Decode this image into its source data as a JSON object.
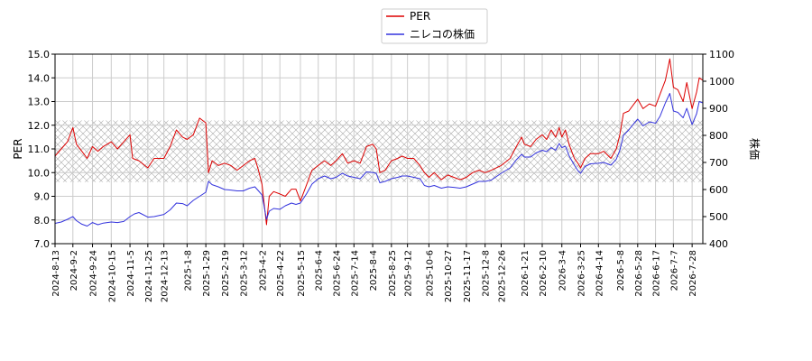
{
  "chart_data": {
    "type": "line",
    "title": "",
    "ylabel": "PER",
    "y2label": "株価",
    "xlabel": "",
    "grid": true,
    "legend_position": "top-center",
    "ylim": [
      7.0,
      15.0
    ],
    "y2lim": [
      400,
      1100
    ],
    "yticks": [
      "7.0",
      "8.0",
      "9.0",
      "10.0",
      "11.0",
      "12.0",
      "13.0",
      "14.0",
      "15.0"
    ],
    "y2ticks": [
      "400",
      "500",
      "600",
      "700",
      "800",
      "900",
      "1000",
      "1100"
    ],
    "x_range": [
      "2024-08-13",
      "2026-08-09"
    ],
    "xticks": [
      "2024-8-13",
      "2024-9-2",
      "2024-9-24",
      "2024-10-15",
      "2024-11-5",
      "2024-11-25",
      "2024-12-13",
      "2025-1-8",
      "2025-1-29",
      "2025-2-19",
      "2025-3-12",
      "2025-4-2",
      "2025-4-22",
      "2025-5-15",
      "2025-6-4",
      "2025-6-24",
      "2025-7-14",
      "2025-8-4",
      "2025-8-25",
      "2025-9-12",
      "2025-10-6",
      "2025-10-27",
      "2025-11-17",
      "2025-12-8",
      "2025-12-26",
      "2026-1-21",
      "2026-2-10",
      "2026-3-4",
      "2026-3-25",
      "2026-4-14",
      "2026-5-8",
      "2026-5-28",
      "2026-6-17",
      "2026-7-7",
      "2026-7-28"
    ],
    "band": {
      "from": 9.6,
      "to": 12.2,
      "color": "#aaaaaa"
    },
    "series": [
      {
        "name": "PER",
        "axis": "left",
        "color": "#dd0000",
        "points": [
          [
            "2024-08-13",
            10.7
          ],
          [
            "2024-08-20",
            11.0
          ],
          [
            "2024-08-27",
            11.3
          ],
          [
            "2024-09-02",
            11.9
          ],
          [
            "2024-09-06",
            11.2
          ],
          [
            "2024-09-12",
            10.9
          ],
          [
            "2024-09-18",
            10.6
          ],
          [
            "2024-09-24",
            11.1
          ],
          [
            "2024-09-30",
            10.9
          ],
          [
            "2024-10-06",
            11.1
          ],
          [
            "2024-10-15",
            11.3
          ],
          [
            "2024-10-22",
            11.0
          ],
          [
            "2024-10-29",
            11.3
          ],
          [
            "2024-11-05",
            11.6
          ],
          [
            "2024-11-08",
            10.6
          ],
          [
            "2024-11-15",
            10.5
          ],
          [
            "2024-11-25",
            10.2
          ],
          [
            "2024-12-02",
            10.6
          ],
          [
            "2024-12-13",
            10.6
          ],
          [
            "2024-12-20",
            11.1
          ],
          [
            "2024-12-27",
            11.8
          ],
          [
            "2025-01-03",
            11.5
          ],
          [
            "2025-01-08",
            11.4
          ],
          [
            "2025-01-15",
            11.6
          ],
          [
            "2025-01-22",
            12.3
          ],
          [
            "2025-01-29",
            12.1
          ],
          [
            "2025-02-01",
            10.0
          ],
          [
            "2025-02-05",
            10.5
          ],
          [
            "2025-02-12",
            10.3
          ],
          [
            "2025-02-19",
            10.4
          ],
          [
            "2025-02-26",
            10.3
          ],
          [
            "2025-03-05",
            10.1
          ],
          [
            "2025-03-12",
            10.3
          ],
          [
            "2025-03-19",
            10.5
          ],
          [
            "2025-03-25",
            10.6
          ],
          [
            "2025-03-29",
            10.1
          ],
          [
            "2025-04-02",
            9.5
          ],
          [
            "2025-04-07",
            7.8
          ],
          [
            "2025-04-10",
            9.0
          ],
          [
            "2025-04-15",
            9.2
          ],
          [
            "2025-04-22",
            9.1
          ],
          [
            "2025-04-28",
            9.0
          ],
          [
            "2025-05-05",
            9.3
          ],
          [
            "2025-05-10",
            9.3
          ],
          [
            "2025-05-15",
            8.8
          ],
          [
            "2025-05-22",
            9.5
          ],
          [
            "2025-05-28",
            10.1
          ],
          [
            "2025-06-04",
            10.3
          ],
          [
            "2025-06-11",
            10.5
          ],
          [
            "2025-06-18",
            10.3
          ],
          [
            "2025-06-24",
            10.5
          ],
          [
            "2025-07-01",
            10.8
          ],
          [
            "2025-07-07",
            10.4
          ],
          [
            "2025-07-14",
            10.5
          ],
          [
            "2025-07-21",
            10.4
          ],
          [
            "2025-07-28",
            11.1
          ],
          [
            "2025-08-04",
            11.2
          ],
          [
            "2025-08-08",
            11.0
          ],
          [
            "2025-08-12",
            10.0
          ],
          [
            "2025-08-18",
            10.1
          ],
          [
            "2025-08-25",
            10.5
          ],
          [
            "2025-09-01",
            10.6
          ],
          [
            "2025-09-06",
            10.7
          ],
          [
            "2025-09-12",
            10.6
          ],
          [
            "2025-09-19",
            10.6
          ],
          [
            "2025-09-26",
            10.3
          ],
          [
            "2025-10-01",
            10.0
          ],
          [
            "2025-10-06",
            9.8
          ],
          [
            "2025-10-12",
            10.0
          ],
          [
            "2025-10-20",
            9.7
          ],
          [
            "2025-10-27",
            9.9
          ],
          [
            "2025-11-03",
            9.8
          ],
          [
            "2025-11-10",
            9.7
          ],
          [
            "2025-11-17",
            9.8
          ],
          [
            "2025-11-24",
            10.0
          ],
          [
            "2025-12-01",
            10.1
          ],
          [
            "2025-12-08",
            10.0
          ],
          [
            "2025-12-15",
            10.1
          ],
          [
            "2025-12-26",
            10.3
          ],
          [
            "2026-01-05",
            10.6
          ],
          [
            "2026-01-12",
            11.1
          ],
          [
            "2026-01-18",
            11.5
          ],
          [
            "2026-01-21",
            11.2
          ],
          [
            "2026-01-28",
            11.1
          ],
          [
            "2026-02-03",
            11.4
          ],
          [
            "2026-02-10",
            11.6
          ],
          [
            "2026-02-15",
            11.4
          ],
          [
            "2026-02-20",
            11.8
          ],
          [
            "2026-02-25",
            11.5
          ],
          [
            "2026-03-01",
            11.9
          ],
          [
            "2026-03-04",
            11.5
          ],
          [
            "2026-03-08",
            11.8
          ],
          [
            "2026-03-12",
            11.2
          ],
          [
            "2026-03-18",
            10.6
          ],
          [
            "2026-03-22",
            10.4
          ],
          [
            "2026-03-25",
            10.2
          ],
          [
            "2026-03-30",
            10.6
          ],
          [
            "2026-04-05",
            10.8
          ],
          [
            "2026-04-14",
            10.8
          ],
          [
            "2026-04-20",
            10.9
          ],
          [
            "2026-04-28",
            10.6
          ],
          [
            "2026-05-04",
            11.0
          ],
          [
            "2026-05-08",
            11.6
          ],
          [
            "2026-05-12",
            12.5
          ],
          [
            "2026-05-18",
            12.6
          ],
          [
            "2026-05-24",
            12.9
          ],
          [
            "2026-05-28",
            13.1
          ],
          [
            "2026-06-03",
            12.7
          ],
          [
            "2026-06-10",
            12.9
          ],
          [
            "2026-06-17",
            12.8
          ],
          [
            "2026-06-22",
            13.3
          ],
          [
            "2026-06-28",
            13.9
          ],
          [
            "2026-07-03",
            14.8
          ],
          [
            "2026-07-07",
            13.6
          ],
          [
            "2026-07-12",
            13.5
          ],
          [
            "2026-07-18",
            13.0
          ],
          [
            "2026-07-22",
            13.8
          ],
          [
            "2026-07-28",
            12.7
          ],
          [
            "2026-08-02",
            13.4
          ],
          [
            "2026-08-05",
            14.0
          ],
          [
            "2026-08-09",
            13.9
          ]
        ]
      },
      {
        "name": "ニレコの株価",
        "axis": "right",
        "color": "#3333dd",
        "points": [
          [
            "2024-08-13",
            475
          ],
          [
            "2024-08-20",
            480
          ],
          [
            "2024-08-27",
            490
          ],
          [
            "2024-09-02",
            500
          ],
          [
            "2024-09-06",
            485
          ],
          [
            "2024-09-12",
            472
          ],
          [
            "2024-09-18",
            465
          ],
          [
            "2024-09-24",
            478
          ],
          [
            "2024-09-30",
            470
          ],
          [
            "2024-10-06",
            476
          ],
          [
            "2024-10-15",
            480
          ],
          [
            "2024-10-22",
            478
          ],
          [
            "2024-10-29",
            482
          ],
          [
            "2024-11-05",
            500
          ],
          [
            "2024-11-10",
            510
          ],
          [
            "2024-11-15",
            515
          ],
          [
            "2024-11-25",
            498
          ],
          [
            "2024-12-02",
            500
          ],
          [
            "2024-12-13",
            508
          ],
          [
            "2024-12-20",
            525
          ],
          [
            "2024-12-27",
            550
          ],
          [
            "2025-01-03",
            548
          ],
          [
            "2025-01-08",
            540
          ],
          [
            "2025-01-15",
            560
          ],
          [
            "2025-01-22",
            575
          ],
          [
            "2025-01-29",
            590
          ],
          [
            "2025-02-01",
            630
          ],
          [
            "2025-02-05",
            618
          ],
          [
            "2025-02-12",
            610
          ],
          [
            "2025-02-19",
            600
          ],
          [
            "2025-02-26",
            598
          ],
          [
            "2025-03-05",
            595
          ],
          [
            "2025-03-12",
            595
          ],
          [
            "2025-03-19",
            605
          ],
          [
            "2025-03-25",
            610
          ],
          [
            "2025-03-29",
            595
          ],
          [
            "2025-04-02",
            580
          ],
          [
            "2025-04-07",
            490
          ],
          [
            "2025-04-10",
            520
          ],
          [
            "2025-04-15",
            530
          ],
          [
            "2025-04-22",
            527
          ],
          [
            "2025-04-28",
            540
          ],
          [
            "2025-05-05",
            550
          ],
          [
            "2025-05-10",
            545
          ],
          [
            "2025-05-15",
            550
          ],
          [
            "2025-05-22",
            585
          ],
          [
            "2025-05-28",
            620
          ],
          [
            "2025-06-04",
            640
          ],
          [
            "2025-06-11",
            650
          ],
          [
            "2025-06-18",
            640
          ],
          [
            "2025-06-24",
            645
          ],
          [
            "2025-07-01",
            660
          ],
          [
            "2025-07-07",
            650
          ],
          [
            "2025-07-14",
            645
          ],
          [
            "2025-07-21",
            640
          ],
          [
            "2025-07-28",
            665
          ],
          [
            "2025-08-04",
            663
          ],
          [
            "2025-08-08",
            660
          ],
          [
            "2025-08-12",
            625
          ],
          [
            "2025-08-18",
            630
          ],
          [
            "2025-08-25",
            640
          ],
          [
            "2025-09-01",
            645
          ],
          [
            "2025-09-06",
            650
          ],
          [
            "2025-09-12",
            650
          ],
          [
            "2025-09-19",
            645
          ],
          [
            "2025-09-26",
            640
          ],
          [
            "2025-10-01",
            615
          ],
          [
            "2025-10-06",
            610
          ],
          [
            "2025-10-12",
            615
          ],
          [
            "2025-10-20",
            605
          ],
          [
            "2025-10-27",
            610
          ],
          [
            "2025-11-03",
            608
          ],
          [
            "2025-11-10",
            605
          ],
          [
            "2025-11-17",
            610
          ],
          [
            "2025-11-24",
            620
          ],
          [
            "2025-12-01",
            630
          ],
          [
            "2025-12-08",
            630
          ],
          [
            "2025-12-15",
            635
          ],
          [
            "2025-12-26",
            660
          ],
          [
            "2026-01-05",
            680
          ],
          [
            "2026-01-12",
            710
          ],
          [
            "2026-01-18",
            730
          ],
          [
            "2026-01-21",
            720
          ],
          [
            "2026-01-28",
            720
          ],
          [
            "2026-02-03",
            735
          ],
          [
            "2026-02-10",
            745
          ],
          [
            "2026-02-15",
            740
          ],
          [
            "2026-02-20",
            755
          ],
          [
            "2026-02-25",
            745
          ],
          [
            "2026-03-01",
            770
          ],
          [
            "2026-03-04",
            755
          ],
          [
            "2026-03-08",
            760
          ],
          [
            "2026-03-12",
            725
          ],
          [
            "2026-03-18",
            690
          ],
          [
            "2026-03-22",
            670
          ],
          [
            "2026-03-25",
            660
          ],
          [
            "2026-03-30",
            685
          ],
          [
            "2026-04-05",
            695
          ],
          [
            "2026-04-14",
            697
          ],
          [
            "2026-04-20",
            700
          ],
          [
            "2026-04-28",
            690
          ],
          [
            "2026-05-04",
            712
          ],
          [
            "2026-05-08",
            745
          ],
          [
            "2026-05-12",
            800
          ],
          [
            "2026-05-18",
            820
          ],
          [
            "2026-05-24",
            845
          ],
          [
            "2026-05-28",
            860
          ],
          [
            "2026-06-03",
            835
          ],
          [
            "2026-06-10",
            850
          ],
          [
            "2026-06-17",
            845
          ],
          [
            "2026-06-22",
            870
          ],
          [
            "2026-06-28",
            920
          ],
          [
            "2026-07-03",
            955
          ],
          [
            "2026-07-07",
            890
          ],
          [
            "2026-07-12",
            885
          ],
          [
            "2026-07-18",
            865
          ],
          [
            "2026-07-22",
            900
          ],
          [
            "2026-07-28",
            840
          ],
          [
            "2026-08-02",
            880
          ],
          [
            "2026-08-05",
            925
          ],
          [
            "2026-08-09",
            920
          ]
        ]
      }
    ]
  }
}
